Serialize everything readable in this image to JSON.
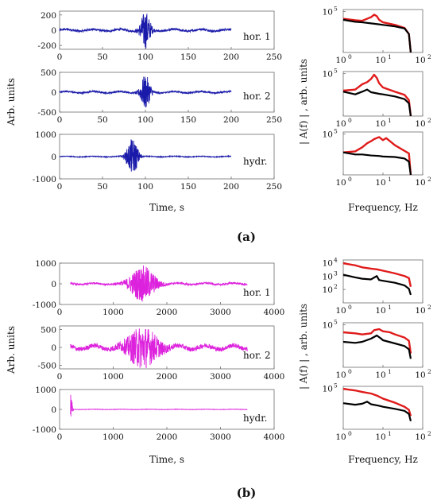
{
  "figure": {
    "panels": [
      "(a)",
      "(b)"
    ],
    "time_axis_label": "Time, s",
    "time_ylabel": "Arb. units",
    "spectrum_axis_label": "Frequency, Hz",
    "spectrum_ylabel": "| A(f) | , arb. units"
  },
  "chart_data": [
    {
      "id": "a-hor1",
      "type": "line",
      "panel": "(a)",
      "label": "hor. 1",
      "xlim": [
        0,
        250
      ],
      "ylim": [
        -250,
        250
      ],
      "xticks": [
        "0",
        "50",
        "100",
        "150",
        "200",
        "250"
      ],
      "yticks": [
        "-200",
        "0",
        "200"
      ],
      "series": [
        {
          "color": "#1a1aaa",
          "x": [
            0,
            200
          ],
          "burst_center": 100,
          "burst_width": 6,
          "noise_amp": 20,
          "burst_amp": 240
        }
      ]
    },
    {
      "id": "a-hor2",
      "type": "line",
      "panel": "(a)",
      "label": "hor. 2",
      "xlim": [
        0,
        250
      ],
      "ylim": [
        -500,
        500
      ],
      "xticks": [
        "0",
        "50",
        "100",
        "150",
        "200",
        "250"
      ],
      "yticks": [
        "-500",
        "0",
        "500"
      ],
      "series": [
        {
          "color": "#1a1aaa",
          "x": [
            0,
            200
          ],
          "burst_center": 100,
          "burst_width": 6,
          "noise_amp": 30,
          "burst_amp": 420
        }
      ]
    },
    {
      "id": "a-hydr",
      "type": "line",
      "panel": "(a)",
      "label": "hydr.",
      "xlim": [
        0,
        250
      ],
      "ylim": [
        -1000,
        1000
      ],
      "xticks": [
        "0",
        "50",
        "100",
        "150",
        "200",
        "250"
      ],
      "yticks": [
        "-1000",
        "0",
        "1000"
      ],
      "series": [
        {
          "color": "#1a1aaa",
          "x": [
            0,
            200
          ],
          "burst_center": 85,
          "burst_width": 7,
          "noise_amp": 25,
          "burst_amp": 800
        }
      ]
    },
    {
      "id": "a-spec1",
      "type": "line",
      "panel": "(a)",
      "scale": "log",
      "xlim": [
        1,
        100
      ],
      "ylim_exp": [
        1,
        5.2
      ],
      "xticks": [
        "10",
        "10",
        "10"
      ],
      "xtick_exp": [
        "0",
        "1",
        "2"
      ],
      "yticks": [
        "10"
      ],
      "ytick_exp": [
        "5"
      ],
      "series": [
        {
          "color": "#e01b1b",
          "points": [
            [
              1,
              4.3
            ],
            [
              2,
              4.15
            ],
            [
              3,
              4.1
            ],
            [
              4,
              4.3
            ],
            [
              5,
              4.45
            ],
            [
              6,
              4.7
            ],
            [
              7,
              4.55
            ],
            [
              8,
              4.2
            ],
            [
              10,
              3.95
            ],
            [
              20,
              3.7
            ],
            [
              35,
              3.4
            ],
            [
              45,
              2.8
            ],
            [
              50,
              1.0
            ]
          ]
        },
        {
          "color": "#000000",
          "points": [
            [
              1,
              4.2
            ],
            [
              2,
              4.0
            ],
            [
              3,
              3.95
            ],
            [
              5,
              3.85
            ],
            [
              8,
              3.75
            ],
            [
              10,
              3.7
            ],
            [
              20,
              3.55
            ],
            [
              35,
              3.35
            ],
            [
              45,
              2.8
            ],
            [
              50,
              1.0
            ]
          ]
        }
      ]
    },
    {
      "id": "a-spec2",
      "type": "line",
      "panel": "(a)",
      "scale": "log",
      "xlim": [
        1,
        100
      ],
      "ylim_exp": [
        1,
        5.2
      ],
      "xticks": [
        "10",
        "10",
        "10"
      ],
      "xtick_exp": [
        "0",
        "1",
        "2"
      ],
      "yticks": [
        "10"
      ],
      "ytick_exp": [
        "5"
      ],
      "series": [
        {
          "color": "#e01b1b",
          "points": [
            [
              1,
              3.4
            ],
            [
              2,
              3.5
            ],
            [
              3,
              4.0
            ],
            [
              4,
              4.2
            ],
            [
              5,
              4.5
            ],
            [
              6,
              4.9
            ],
            [
              7,
              4.6
            ],
            [
              8,
              4.1
            ],
            [
              10,
              3.7
            ],
            [
              20,
              3.3
            ],
            [
              35,
              3.0
            ],
            [
              45,
              2.5
            ],
            [
              50,
              1.0
            ]
          ]
        },
        {
          "color": "#000000",
          "points": [
            [
              1,
              3.3
            ],
            [
              2,
              3.05
            ],
            [
              3,
              3.3
            ],
            [
              4,
              3.5
            ],
            [
              5,
              3.25
            ],
            [
              8,
              3.1
            ],
            [
              10,
              3.05
            ],
            [
              20,
              2.85
            ],
            [
              35,
              2.6
            ],
            [
              45,
              2.2
            ],
            [
              50,
              1.0
            ]
          ]
        }
      ]
    },
    {
      "id": "a-spec3",
      "type": "line",
      "panel": "(a)",
      "scale": "log",
      "xlim": [
        1,
        100
      ],
      "ylim_exp": [
        1,
        5.2
      ],
      "xticks": [
        "10",
        "10",
        "10"
      ],
      "xtick_exp": [
        "0",
        "1",
        "2"
      ],
      "yticks": [
        "10"
      ],
      "ytick_exp": [
        "5"
      ],
      "series": [
        {
          "color": "#e01b1b",
          "points": [
            [
              1,
              3.2
            ],
            [
              2,
              3.3
            ],
            [
              3,
              3.7
            ],
            [
              4,
              4.1
            ],
            [
              5,
              4.3
            ],
            [
              6,
              4.5
            ],
            [
              8,
              4.7
            ],
            [
              10,
              4.4
            ],
            [
              12,
              4.6
            ],
            [
              15,
              4.3
            ],
            [
              20,
              3.9
            ],
            [
              30,
              3.5
            ],
            [
              45,
              3.1
            ],
            [
              50,
              1.0
            ]
          ]
        },
        {
          "color": "#000000",
          "points": [
            [
              1,
              3.2
            ],
            [
              2,
              3.0
            ],
            [
              3,
              3.0
            ],
            [
              5,
              2.9
            ],
            [
              8,
              2.85
            ],
            [
              10,
              2.8
            ],
            [
              20,
              2.75
            ],
            [
              35,
              2.6
            ],
            [
              45,
              2.3
            ],
            [
              50,
              1.0
            ]
          ]
        }
      ]
    },
    {
      "id": "b-hor1",
      "type": "line",
      "panel": "(b)",
      "label": "hor. 1",
      "xlim": [
        0,
        4000
      ],
      "ylim": [
        -1000,
        1000
      ],
      "xticks": [
        "0",
        "1000",
        "2000",
        "3000",
        "4000"
      ],
      "yticks": [
        "-1000",
        "0",
        "1000"
      ],
      "series": [
        {
          "color": "#dd22dd",
          "x": [
            200,
            3500
          ],
          "burst_center": 1550,
          "burst_width": 250,
          "noise_amp": 60,
          "burst_amp": 850
        }
      ]
    },
    {
      "id": "b-hor2",
      "type": "line",
      "panel": "(b)",
      "label": "hor. 2",
      "xlim": [
        0,
        4000
      ],
      "ylim": [
        -600,
        600
      ],
      "xticks": [
        "0",
        "1000",
        "2000",
        "3000",
        "4000"
      ],
      "yticks": [
        "-500",
        "0",
        "500"
      ],
      "series": [
        {
          "color": "#dd22dd",
          "x": [
            200,
            3500
          ],
          "burst_center": 1550,
          "burst_width": 300,
          "noise_amp": 90,
          "burst_amp": 550
        }
      ]
    },
    {
      "id": "b-hydr",
      "type": "line",
      "panel": "(b)",
      "label": "hydr.",
      "xlim": [
        0,
        4000
      ],
      "ylim": [
        -1000,
        1000
      ],
      "xticks": [
        "0",
        "1000",
        "2000",
        "3000",
        "4000"
      ],
      "yticks": [
        "-1000",
        "0",
        "1000"
      ],
      "series": [
        {
          "color": "#dd22dd",
          "x": [
            200,
            3500
          ],
          "burst_center": 210,
          "burst_width": 25,
          "noise_amp": 12,
          "burst_amp": 900
        }
      ]
    },
    {
      "id": "b-spec1",
      "type": "line",
      "panel": "(b)",
      "scale": "log",
      "xlim": [
        1,
        100
      ],
      "ylim_exp": [
        1,
        4.2
      ],
      "xticks": [
        "10",
        "10",
        "10"
      ],
      "xtick_exp": [
        "0",
        "1",
        "2"
      ],
      "yticks": [
        "10",
        "10",
        "10"
      ],
      "ytick_exp": [
        "2",
        "3",
        "4"
      ],
      "series": [
        {
          "color": "#e01b1b",
          "points": [
            [
              1,
              3.95
            ],
            [
              2,
              3.8
            ],
            [
              3,
              3.65
            ],
            [
              5,
              3.55
            ],
            [
              7,
              3.5
            ],
            [
              10,
              3.4
            ],
            [
              20,
              3.2
            ],
            [
              35,
              3.0
            ],
            [
              45,
              2.85
            ],
            [
              50,
              2.2
            ]
          ]
        },
        {
          "color": "#000000",
          "points": [
            [
              1,
              3.1
            ],
            [
              2,
              2.9
            ],
            [
              3,
              2.8
            ],
            [
              5,
              2.75
            ],
            [
              7,
              3.0
            ],
            [
              8,
              2.7
            ],
            [
              10,
              2.65
            ],
            [
              20,
              2.5
            ],
            [
              35,
              2.3
            ],
            [
              45,
              2.05
            ],
            [
              50,
              1.6
            ]
          ]
        }
      ]
    },
    {
      "id": "b-spec2",
      "type": "line",
      "panel": "(b)",
      "scale": "log",
      "xlim": [
        1,
        100
      ],
      "ylim_exp": [
        1,
        5.2
      ],
      "xticks": [
        "10",
        "10",
        "10"
      ],
      "xtick_exp": [
        "0",
        "1",
        "2"
      ],
      "yticks": [
        "10"
      ],
      "ytick_exp": [
        "5"
      ],
      "series": [
        {
          "color": "#e01b1b",
          "points": [
            [
              1,
              4.3
            ],
            [
              2,
              4.2
            ],
            [
              3,
              4.1
            ],
            [
              5,
              4.2
            ],
            [
              6,
              4.5
            ],
            [
              8,
              4.6
            ],
            [
              10,
              4.4
            ],
            [
              15,
              4.3
            ],
            [
              20,
              4.1
            ],
            [
              35,
              3.8
            ],
            [
              45,
              3.5
            ],
            [
              50,
              2.3
            ]
          ]
        },
        {
          "color": "#000000",
          "points": [
            [
              1,
              3.4
            ],
            [
              2,
              3.3
            ],
            [
              3,
              3.4
            ],
            [
              5,
              3.7
            ],
            [
              7,
              4.0
            ],
            [
              9,
              3.7
            ],
            [
              10,
              3.55
            ],
            [
              20,
              3.25
            ],
            [
              35,
              3.0
            ],
            [
              45,
              2.7
            ],
            [
              50,
              1.8
            ]
          ]
        }
      ]
    },
    {
      "id": "b-spec3",
      "type": "line",
      "panel": "(b)",
      "scale": "log",
      "xlim": [
        1,
        100
      ],
      "ylim_exp": [
        1,
        5.2
      ],
      "xticks": [
        "10",
        "10",
        "10"
      ],
      "xtick_exp": [
        "0",
        "1",
        "2"
      ],
      "yticks": [
        "10"
      ],
      "ytick_exp": [
        "5"
      ],
      "series": [
        {
          "color": "#e01b1b",
          "points": [
            [
              1,
              4.95
            ],
            [
              2,
              4.8
            ],
            [
              3,
              4.65
            ],
            [
              5,
              4.5
            ],
            [
              7,
              4.3
            ],
            [
              10,
              4.0
            ],
            [
              20,
              3.6
            ],
            [
              35,
              3.2
            ],
            [
              45,
              2.9
            ],
            [
              50,
              2.3
            ]
          ]
        },
        {
          "color": "#000000",
          "points": [
            [
              1,
              3.55
            ],
            [
              2,
              3.4
            ],
            [
              3,
              3.5
            ],
            [
              4,
              3.7
            ],
            [
              5,
              3.45
            ],
            [
              8,
              3.3
            ],
            [
              10,
              3.2
            ],
            [
              20,
              3.0
            ],
            [
              35,
              2.8
            ],
            [
              45,
              2.5
            ],
            [
              50,
              1.8
            ]
          ]
        }
      ]
    }
  ]
}
